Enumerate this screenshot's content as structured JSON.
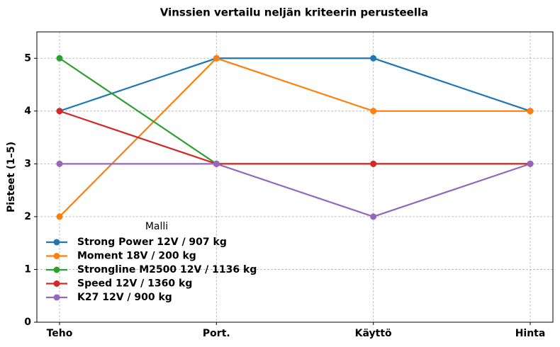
{
  "chart_data": {
    "type": "line",
    "title": "Vinssien vertailu neljän kriteerin perusteella",
    "y_label": "Pisteet (1–5)",
    "categories": [
      "Teho",
      "Port.",
      "Käyttö",
      "Hinta"
    ],
    "series": [
      {
        "name": "Strong Power 12V / 907 kg",
        "color": "#1f77b4",
        "values": [
          4,
          5,
          5,
          4
        ]
      },
      {
        "name": "Moment 18V / 200 kg",
        "color": "#ff7f0e",
        "values": [
          2,
          5,
          4,
          4
        ]
      },
      {
        "name": "Strongline M2500 12V / 1136 kg",
        "color": "#2ca02c",
        "values": [
          5,
          3,
          3,
          3
        ]
      },
      {
        "name": "Speed 12V / 1360 kg",
        "color": "#d62728",
        "values": [
          4,
          3,
          3,
          3
        ]
      },
      {
        "name": "K27 12V / 900 kg",
        "color": "#9467bd",
        "values": [
          3,
          3,
          2,
          3
        ]
      }
    ],
    "legend_title": "Malli",
    "legend": "lower left",
    "ylim": [
      0,
      5.5
    ],
    "yticks": [
      0,
      1,
      2,
      3,
      4,
      5
    ],
    "grid": true
  }
}
